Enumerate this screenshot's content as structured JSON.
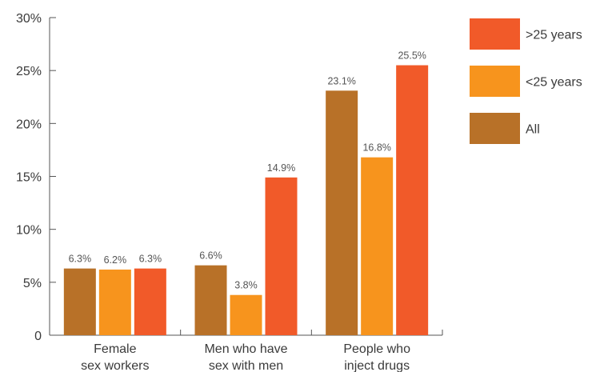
{
  "chart_data": {
    "type": "bar",
    "categories": [
      [
        "Female",
        "sex workers"
      ],
      [
        "Men who have",
        "sex with men"
      ],
      [
        "People who",
        "inject drugs"
      ]
    ],
    "series": [
      {
        "name": "All",
        "color": "#B87128",
        "values": [
          6.3,
          6.6,
          23.1
        ]
      },
      {
        "name": "<25 years",
        "color": "#F7941D",
        "values": [
          6.2,
          3.8,
          16.8
        ]
      },
      {
        "name": ">25 years",
        "color": "#F15A29",
        "values": [
          6.3,
          14.9,
          25.5
        ]
      }
    ],
    "value_labels": [
      [
        "6.3%",
        "6.6%",
        "23.1%"
      ],
      [
        "6.2%",
        "3.8%",
        "16.8%"
      ],
      [
        "6.3%",
        "14.9%",
        "25.5%"
      ]
    ],
    "y_ticks": [
      0,
      5,
      10,
      15,
      20,
      25,
      30
    ],
    "y_tick_labels": [
      "0",
      "5%",
      "10%",
      "15%",
      "20%",
      "25%",
      "30%"
    ],
    "ylim": [
      0,
      30
    ],
    "legend_order": [
      ">25 years",
      "<25 years",
      "All"
    ],
    "legend_position": "top-right",
    "grid": false
  }
}
